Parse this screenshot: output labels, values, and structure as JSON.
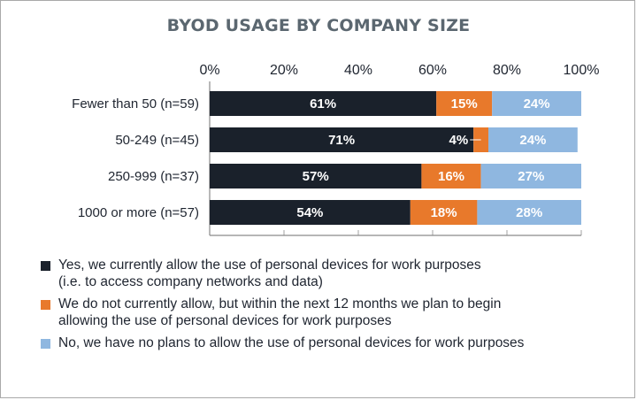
{
  "chart_data": {
    "type": "bar",
    "orientation": "horizontal",
    "stacked": true,
    "title": "BYOD USAGE BY COMPANY SIZE",
    "categories": [
      "Fewer than 50 (n=59)",
      "50-249 (n=45)",
      "250-999 (n=37)",
      "1000 or more (n=57)"
    ],
    "series": [
      {
        "name": "Yes, we currently allow the use of personal devices for work purposes (i.e. to access company networks and data)",
        "color": "#1a212b",
        "values": [
          61,
          71,
          57,
          54
        ],
        "labels": [
          "61%",
          "71%",
          "57%",
          "54%"
        ]
      },
      {
        "name": "We do not currently allow, but within the next 12 months we plan to begin allowing the use of personal devices for work purposes",
        "color": "#e8792b",
        "values": [
          15,
          4,
          16,
          18
        ],
        "labels": [
          "15%",
          "4%",
          "16%",
          "18%"
        ]
      },
      {
        "name": "No, we have no plans to allow the use of personal devices for work purposes",
        "color": "#8fb7e0",
        "values": [
          24,
          24,
          27,
          28
        ],
        "labels": [
          "24%",
          "24%",
          "27%",
          "28%"
        ]
      }
    ],
    "xticks": [
      "0%",
      "20%",
      "40%",
      "60%",
      "80%",
      "100%"
    ],
    "xlim": [
      0,
      100
    ],
    "grid": false,
    "legend_position": "bottom"
  },
  "legend": {
    "line1": "Yes, we currently allow the use of personal devices for work purposes",
    "line1b": "(i.e. to access company networks and data)",
    "line2": "We do not currently allow, but within the next 12 months we plan to begin",
    "line2b": "allowing the use of personal devices for work purposes",
    "line3": "No, we have no plans to allow the use of personal devices for work purposes"
  }
}
